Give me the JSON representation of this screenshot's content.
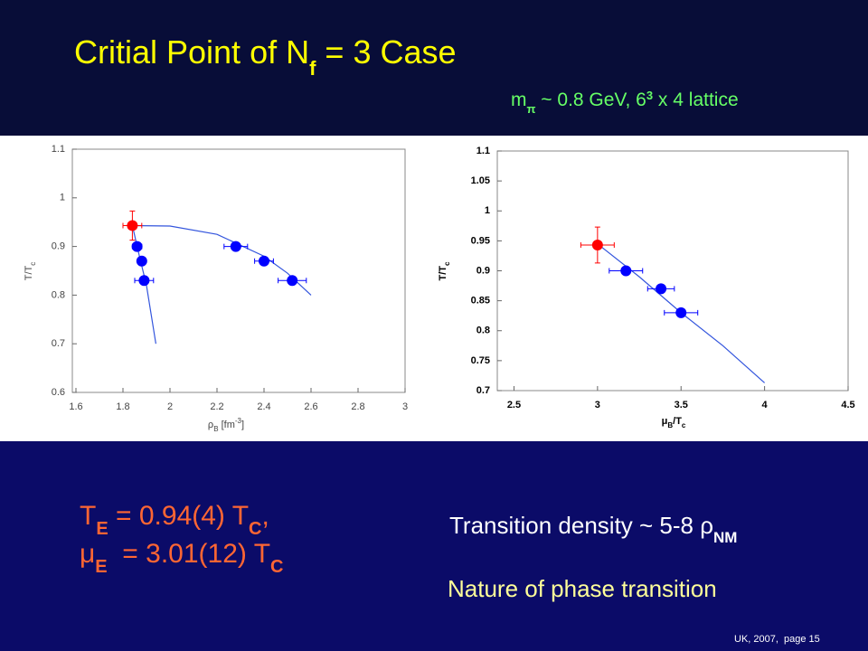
{
  "header": {
    "title": [
      "Critial Point of N",
      "f",
      " = 3 Case"
    ],
    "subtitle": [
      "m",
      "π",
      " ~ 0.8 GeV, 6",
      "3",
      " x 4 lattice"
    ]
  },
  "chart_data": [
    {
      "type": "scatter",
      "xlabel": [
        "ρ",
        "B",
        " [fm",
        "-3",
        "]"
      ],
      "ylabel": [
        "T/T",
        "c"
      ],
      "xlim": [
        1.6,
        3
      ],
      "ylim": [
        0.6,
        1.1
      ],
      "xticks": [
        1.6,
        1.8,
        2,
        2.2,
        2.4,
        2.6,
        2.8,
        3
      ],
      "yticks": [
        0.6,
        0.7,
        0.8,
        0.9,
        1,
        1.1
      ],
      "grid": false,
      "series": [
        {
          "color": "#ff0000",
          "x": [
            1.84
          ],
          "values": [
            0.943
          ],
          "xerr": [
            0.04
          ],
          "yerr": [
            0.03
          ]
        },
        {
          "color": "#0000ff",
          "x": [
            1.86,
            1.88,
            1.89,
            2.28,
            2.4,
            2.52
          ],
          "values": [
            0.9,
            0.87,
            0.83,
            0.9,
            0.87,
            0.83
          ],
          "xerr": [
            0.02,
            0.015,
            0.04,
            0.05,
            0.04,
            0.06
          ]
        }
      ],
      "fits": [
        {
          "color": "#3355dd",
          "x": [
            1.84,
            1.87,
            1.9,
            1.92,
            1.94
          ],
          "values": [
            0.943,
            0.88,
            0.82,
            0.76,
            0.7
          ]
        },
        {
          "color": "#3355dd",
          "x": [
            1.84,
            2.0,
            2.2,
            2.4,
            2.5,
            2.6
          ],
          "values": [
            0.943,
            0.942,
            0.925,
            0.88,
            0.845,
            0.8
          ]
        }
      ]
    },
    {
      "type": "scatter",
      "xlabel": [
        "μ",
        "B",
        "/T",
        "c"
      ],
      "ylabel": [
        "T/T",
        "c"
      ],
      "xlim": [
        2.4,
        4.5
      ],
      "ylim": [
        0.7,
        1.1
      ],
      "xticks": [
        2.5,
        3,
        3.5,
        4,
        4.5
      ],
      "yticks": [
        0.7,
        0.75,
        0.8,
        0.85,
        0.9,
        0.95,
        1,
        1.05,
        1.1
      ],
      "grid": false,
      "series": [
        {
          "color": "#ff0000",
          "x": [
            3.0
          ],
          "values": [
            0.943
          ],
          "xerr": [
            0.1
          ],
          "yerr": [
            0.03
          ]
        },
        {
          "color": "#0000ff",
          "x": [
            3.17,
            3.38,
            3.5
          ],
          "values": [
            0.9,
            0.87,
            0.83
          ],
          "xerr": [
            0.1,
            0.08,
            0.1
          ]
        }
      ],
      "fits": [
        {
          "color": "#3355dd",
          "x": [
            3.0,
            3.25,
            3.5,
            3.75,
            4.0
          ],
          "values": [
            0.945,
            0.89,
            0.83,
            0.775,
            0.713
          ]
        }
      ]
    }
  ],
  "results": {
    "te": [
      "T",
      "E",
      " = 0.94(4) T",
      "C",
      ","
    ],
    "mue": [
      "μ",
      "E",
      "  = 3.01(12) T",
      "C"
    ],
    "density": [
      "Transition density ~ 5-8 ρ",
      "NM"
    ],
    "nature": "Nature of phase transition",
    "footer": "UK, 2007,  page 15"
  }
}
